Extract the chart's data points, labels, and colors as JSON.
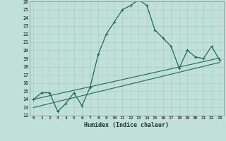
{
  "xlabel": "Humidex (Indice chaleur)",
  "xlim": [
    -0.5,
    23.5
  ],
  "ylim": [
    12,
    26
  ],
  "xticks": [
    0,
    1,
    2,
    3,
    4,
    5,
    6,
    7,
    8,
    9,
    10,
    11,
    12,
    13,
    14,
    15,
    16,
    17,
    18,
    19,
    20,
    21,
    22,
    23
  ],
  "yticks": [
    12,
    13,
    14,
    15,
    16,
    17,
    18,
    19,
    20,
    21,
    22,
    23,
    24,
    25,
    26
  ],
  "line_color": "#1a6b5a",
  "bg_color": "#c0e0d8",
  "grid_color": "#a8ccc4",
  "curve1_x": [
    0,
    1,
    2,
    3,
    4,
    5,
    6,
    7,
    8,
    9,
    10,
    11,
    12,
    13,
    14,
    15,
    16,
    17,
    18,
    19,
    20,
    21,
    22,
    23
  ],
  "curve1_y": [
    14.0,
    14.8,
    14.8,
    12.5,
    13.5,
    14.8,
    13.2,
    15.5,
    19.5,
    22.0,
    23.5,
    25.0,
    25.5,
    26.2,
    25.5,
    22.5,
    21.5,
    20.5,
    17.8,
    20.0,
    19.2,
    19.0,
    20.5,
    18.8
  ],
  "curve2_x": [
    0,
    1,
    2,
    3,
    4,
    5,
    6,
    7,
    8,
    9,
    10,
    11,
    12,
    13,
    14,
    15,
    16,
    17,
    18,
    19,
    20,
    21,
    22,
    23
  ],
  "curve2_y": [
    14.0,
    14.22,
    14.44,
    14.66,
    14.88,
    15.1,
    15.32,
    15.54,
    15.76,
    15.98,
    16.2,
    16.42,
    16.64,
    16.86,
    17.08,
    17.3,
    17.52,
    17.74,
    17.96,
    18.18,
    18.4,
    18.62,
    18.84,
    19.06
  ],
  "curve3_x": [
    0,
    1,
    2,
    3,
    4,
    5,
    6,
    7,
    8,
    9,
    10,
    11,
    12,
    13,
    14,
    15,
    16,
    17,
    18,
    19,
    20,
    21,
    22,
    23
  ],
  "curve3_y": [
    13.0,
    13.24,
    13.48,
    13.72,
    13.96,
    14.2,
    14.44,
    14.68,
    14.92,
    15.16,
    15.4,
    15.64,
    15.88,
    16.12,
    16.36,
    16.6,
    16.84,
    17.08,
    17.32,
    17.56,
    17.8,
    18.04,
    18.28,
    18.52
  ]
}
